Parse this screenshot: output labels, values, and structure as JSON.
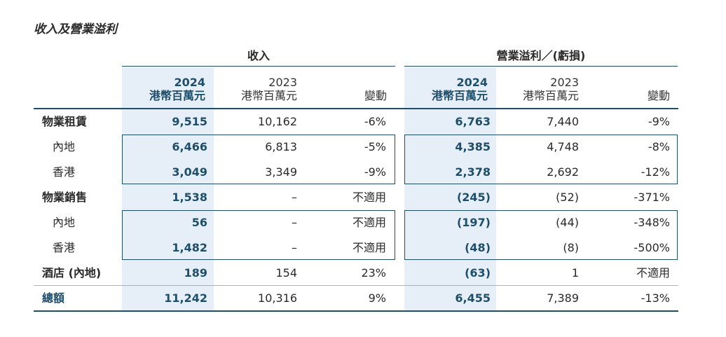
{
  "title": "收入及營業溢利",
  "groups": {
    "revenue": "收入",
    "op_profit": "營業溢利／(虧損)"
  },
  "columns": [
    {
      "year": "2024",
      "unit": "港幣百萬元"
    },
    {
      "year": "2023",
      "unit": "港幣百萬元"
    },
    {
      "change": "變動"
    },
    {
      "year": "2024",
      "unit": "港幣百萬元"
    },
    {
      "year": "2023",
      "unit": "港幣百萬元"
    },
    {
      "change": "變動"
    }
  ],
  "rows": [
    {
      "label": "物業租賃",
      "level": "main",
      "values": [
        "9,515",
        "10,162",
        "-6%",
        "6,763",
        "7,440",
        "-9%"
      ]
    },
    {
      "label": "內地",
      "level": "sub",
      "values": [
        "6,466",
        "6,813",
        "-5%",
        "4,385",
        "4,748",
        "-8%"
      ]
    },
    {
      "label": "香港",
      "level": "sub",
      "values": [
        "3,049",
        "3,349",
        "-9%",
        "2,378",
        "2,692",
        "-12%"
      ]
    },
    {
      "label": "物業銷售",
      "level": "main",
      "values": [
        "1,538",
        "–",
        "不適用",
        "(245)",
        "(52)",
        "-371%"
      ]
    },
    {
      "label": "內地",
      "level": "sub",
      "values": [
        "56",
        "–",
        "不適用",
        "(197)",
        "(44)",
        "-348%"
      ]
    },
    {
      "label": "香港",
      "level": "sub",
      "values": [
        "1,482",
        "–",
        "不適用",
        "(48)",
        "(8)",
        "-500%"
      ]
    },
    {
      "label": "酒店 (內地)",
      "level": "main",
      "values": [
        "189",
        "154",
        "23%",
        "(63)",
        "1",
        "不適用"
      ]
    },
    {
      "label": "總額",
      "level": "total",
      "values": [
        "11,242",
        "10,316",
        "9%",
        "6,455",
        "7,389",
        "-13%"
      ]
    }
  ],
  "colors": {
    "accent": "#1f4e6b",
    "shade": "#e6eff7",
    "rule": "#9fb6c7"
  }
}
